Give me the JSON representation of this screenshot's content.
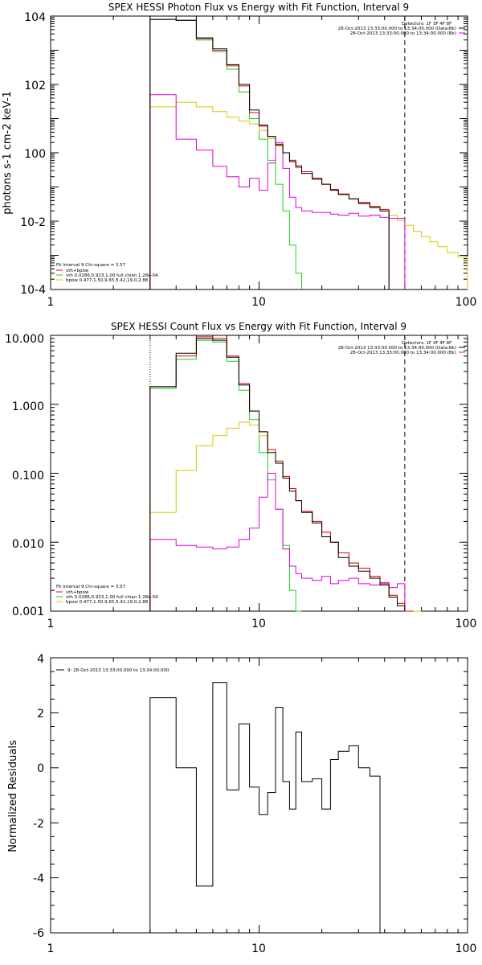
{
  "colors": {
    "total": "#000000",
    "vth_bpow": "#e8001a",
    "vth": "#19d119",
    "bpow": "#d9c700",
    "background": "#dd00dd"
  },
  "chart_data": [
    {
      "type": "line",
      "title": "SPEX HESSI Photon Flux vs Energy with Fit Function, Interval 9",
      "ylabel": "photons s-1 cm-2 keV-1",
      "xlabel": "",
      "xscale": "log",
      "yscale": "log",
      "xlim": [
        1,
        100
      ],
      "ylim": [
        0.0001,
        10000
      ],
      "x_tick_labels": [
        "1",
        "10",
        "100"
      ],
      "y_tick_labels": [
        "10-4",
        "10-2",
        "100",
        "102",
        "104"
      ],
      "header_lines": [
        "Detectors: 1F 3F 4F 8F",
        "28-Oct-2013 13:33:00.000 to 13:34:00.000 (Data-Bk)",
        "28-Oct-2013 13:33:00.000 to 13:34:00.000 (Bk)"
      ],
      "legend_lines": [
        "Fit Interval 9   Chi-square = 3.57",
        "vth+bpow",
        "vth 0.0286,0.923,1.00  full chian 1.28e-04",
        "bpow 0.477,1.50,9.65,5.42,19.0,2.88"
      ],
      "vlines": [
        3,
        50
      ],
      "bin_edges": [
        3,
        4,
        5,
        6,
        7,
        8,
        9,
        10,
        11,
        12,
        13,
        14,
        15,
        16,
        18,
        20,
        22,
        24,
        27,
        30,
        34,
        38,
        42,
        46,
        50,
        55,
        60,
        66,
        72,
        80,
        90,
        100
      ],
      "series": [
        {
          "name": "vth+bpow",
          "values": [
            8000,
            7500,
            2200,
            1000,
            350,
            90,
            15,
            6,
            3,
            1.8,
            1.0,
            0.6,
            0.42,
            0.28,
            0.18,
            0.12,
            0.085,
            0.062,
            0.045,
            0.035,
            0.027,
            0.022
          ]
        },
        {
          "name": "vth",
          "values": [
            8000,
            7500,
            2000,
            900,
            280,
            60,
            10,
            2.5,
            0.6,
            0.12,
            0.02,
            0.002,
            0.0003
          ]
        },
        {
          "name": "bpow",
          "values": [
            22,
            30,
            22,
            16,
            11,
            8.5,
            7,
            4.5,
            2.6,
            1.6,
            1.0,
            0.6,
            0.42,
            0.28,
            0.18,
            0.12,
            0.085,
            0.062,
            0.045,
            0.035,
            0.027,
            0.02,
            0.015,
            0.0105,
            0.0075,
            0.005,
            0.0035,
            0.0025,
            0.0018,
            0.0012,
            0.0009
          ]
        },
        {
          "name": "Data-Bk",
          "values": [
            8000,
            7500,
            2300,
            1100,
            380,
            100,
            18,
            6.5,
            3,
            1.7,
            1.0,
            0.55,
            0.38,
            0.25,
            0.17,
            0.12,
            0.08,
            0.06,
            0.045,
            0.033,
            0.025,
            0.02
          ]
        },
        {
          "name": "Bk",
          "values": [
            50,
            2.5,
            1.2,
            0.4,
            0.2,
            0.1,
            0.18,
            0.08,
            0.5,
            2.0,
            0.35,
            0.05,
            0.025,
            0.02,
            0.018,
            0.018,
            0.016,
            0.015,
            0.017,
            0.014,
            0.015,
            0.013,
            0.012,
            0.012
          ]
        }
      ]
    },
    {
      "type": "line",
      "title": "SPEX HESSI Count Flux vs Energy with Fit Function, Interval 9",
      "ylabel": "",
      "xlabel": "",
      "xscale": "log",
      "yscale": "log",
      "xlim": [
        1,
        100
      ],
      "ylim": [
        0.001,
        10
      ],
      "x_tick_labels": [
        "1",
        "10",
        "100"
      ],
      "y_tick_labels": [
        "0.001",
        "0.010",
        "0.100",
        "1.000",
        "10.000"
      ],
      "header_lines": [
        "Detectors: 1F 3F 4F 8F",
        "28-Oct-2013 13:33:00.000 to 13:34:00.000 (Data-Bk)",
        "28-Oct-2013 13:33:00.000 to 13:34:00.000 (Bk)"
      ],
      "legend_lines": [
        "Fit Interval 9   Chi-square = 3.57",
        "vth+bpow",
        "vth 0.0286,0.923,1.00  full chian 1.28e-04",
        "bpow 0.477,1.50,9.65,5.42,19.0,2.88"
      ],
      "vlines": [
        3,
        50
      ],
      "bin_edges": [
        3,
        4,
        5,
        6,
        7,
        8,
        9,
        10,
        11,
        12,
        13,
        14,
        15,
        16,
        18,
        20,
        22,
        24,
        27,
        30,
        34,
        38,
        42,
        46,
        50,
        55,
        60
      ],
      "series": [
        {
          "name": "vth+bpow",
          "values": [
            1.8,
            5.0,
            9.5,
            9.0,
            5.0,
            2.0,
            0.8,
            0.4,
            0.22,
            0.15,
            0.09,
            0.06,
            0.04,
            0.028,
            0.02,
            0.014,
            0.01,
            0.007,
            0.005,
            0.0042,
            0.0032,
            0.0025,
            0.0017,
            0.0013,
            0.001
          ]
        },
        {
          "name": "vth",
          "values": [
            1.7,
            4.5,
            8.5,
            8.0,
            4.2,
            1.6,
            0.6,
            0.2,
            0.08,
            0.03,
            0.009,
            0.002,
            0.0006
          ]
        },
        {
          "name": "bpow",
          "values": [
            0.027,
            0.11,
            0.25,
            0.35,
            0.45,
            0.55,
            0.5,
            0.35,
            0.22,
            0.15,
            0.09,
            0.06,
            0.04,
            0.028,
            0.02,
            0.014,
            0.01,
            0.007,
            0.005,
            0.0042,
            0.0032,
            0.0025,
            0.0017,
            0.0013,
            0.001,
            0.0008
          ]
        },
        {
          "name": "Data-Bk",
          "values": [
            1.8,
            5.5,
            9.0,
            8.5,
            4.8,
            1.9,
            0.8,
            0.4,
            0.2,
            0.14,
            0.085,
            0.055,
            0.04,
            0.027,
            0.019,
            0.012,
            0.01,
            0.006,
            0.0045,
            0.0038,
            0.003,
            0.0024,
            0.0016,
            0.0012
          ]
        },
        {
          "name": "Bk",
          "values": [
            0.011,
            0.009,
            0.0085,
            0.008,
            0.0085,
            0.011,
            0.016,
            0.045,
            0.1,
            0.03,
            0.008,
            0.0045,
            0.0035,
            0.003,
            0.0028,
            0.0032,
            0.0025,
            0.0028,
            0.003,
            0.0025,
            0.0024,
            0.0026,
            0.0022,
            0.0025
          ]
        }
      ]
    },
    {
      "type": "line",
      "title": "",
      "ylabel": "Normalized Residuals",
      "xlabel": "",
      "xscale": "log",
      "xlim": [
        1,
        100
      ],
      "ylim": [
        -6,
        4
      ],
      "x_tick_labels": [
        "1",
        "10",
        "100"
      ],
      "y_tick_labels": [
        "-6",
        "-4",
        "-2",
        "0",
        "2",
        "4"
      ],
      "legend_lines": [
        "9: 28-Oct-2013 13:33:00.000 to 13:34:00.000"
      ],
      "bin_edges": [
        3,
        4,
        5,
        6,
        7,
        8,
        9,
        10,
        11,
        12,
        13,
        14,
        15,
        16,
        18,
        20,
        22,
        24,
        27,
        30,
        34,
        38,
        42,
        46,
        50
      ],
      "series": [
        {
          "name": "residuals",
          "values": [
            2.55,
            0.0,
            -4.3,
            3.1,
            -0.8,
            1.6,
            -0.7,
            -1.7,
            -0.9,
            2.2,
            -0.5,
            -1.5,
            1.3,
            -0.5,
            -0.4,
            -1.5,
            0.3,
            0.6,
            0.8,
            0.0,
            -0.3
          ]
        }
      ]
    }
  ]
}
